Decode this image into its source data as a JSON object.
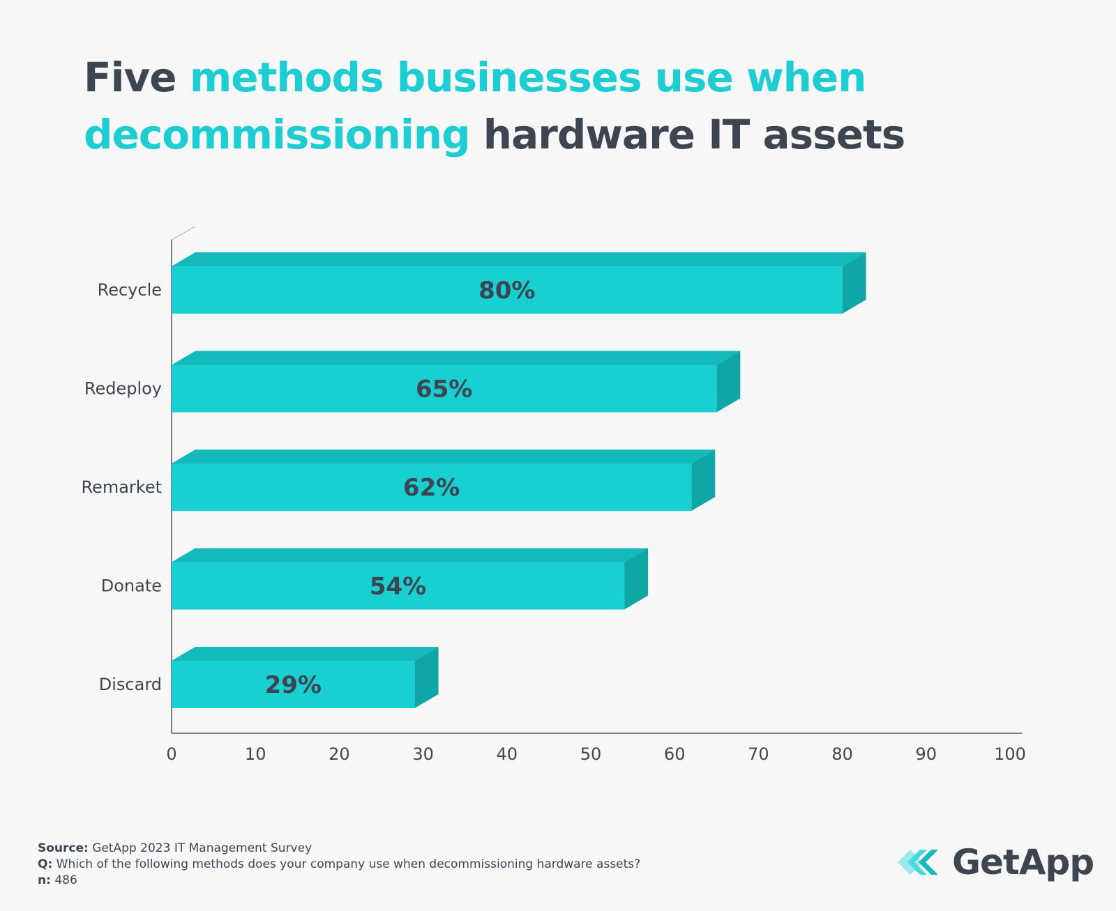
{
  "title": {
    "part1": "Five",
    "part2": "methods businesses use when",
    "part3": "decommissioning",
    "part4": "hardware IT assets"
  },
  "colors": {
    "bar_front": "#18cfd2",
    "bar_top": "#14b9bc",
    "bar_side": "#10a6a6",
    "highlight": "#1ccdd3",
    "text": "#3d4650"
  },
  "chart_data": {
    "type": "bar",
    "orientation": "horizontal",
    "categories": [
      "Recycle",
      "Redeploy",
      "Remarket",
      "Donate",
      "Discard"
    ],
    "values": [
      80,
      65,
      62,
      54,
      29
    ],
    "value_labels": [
      "80%",
      "65%",
      "62%",
      "54%",
      "29%"
    ],
    "xlim": [
      0,
      100
    ],
    "xticks": [
      0,
      10,
      20,
      30,
      40,
      50,
      60,
      70,
      80,
      90,
      100
    ],
    "grid": false
  },
  "footer": {
    "source_label": "Source:",
    "source_text": "GetApp 2023 IT Management Survey",
    "q_label": "Q:",
    "q_text": "Which of the following methods does your company use when decommissioning hardware assets?",
    "n_label": "n:",
    "n_text": "486"
  },
  "logo": {
    "text": "GetApp"
  }
}
